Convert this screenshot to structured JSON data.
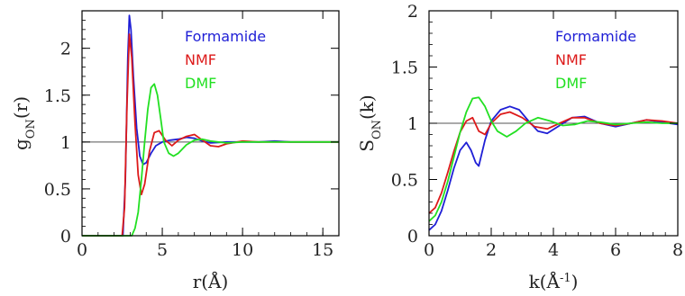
{
  "colors": {
    "Formamide": "#1f1fd6",
    "NMF": "#dd1a1a",
    "DMF": "#22e022",
    "axis": "#000000",
    "reference": "#555555"
  },
  "chart_data": [
    {
      "type": "line",
      "xlabel": "r(Å)",
      "ylabel_main": "g",
      "ylabel_sub": "ON",
      "ylabel_arg": "(r)",
      "xlim": [
        0,
        16
      ],
      "ylim": [
        0,
        2.4
      ],
      "xticks": [
        0,
        5,
        10,
        15
      ],
      "xtick_labels": [
        "0",
        "5",
        "10",
        "15"
      ],
      "yticks": [
        0,
        0.5,
        1,
        1.5,
        2
      ],
      "ytick_labels": [
        "0",
        "0.5",
        "1",
        "1.5",
        "2"
      ],
      "reference_line": 1,
      "legend_position": "top-right",
      "series": [
        {
          "name": "Formamide",
          "x": [
            0,
            2.55,
            2.7,
            2.85,
            2.95,
            3.05,
            3.2,
            3.4,
            3.6,
            3.8,
            4.0,
            4.3,
            4.6,
            5.0,
            5.5,
            6.0,
            6.5,
            7.0,
            7.5,
            8.0,
            9.0,
            10.0,
            11.0,
            12.0,
            13.0,
            14.0,
            15.0,
            16.0
          ],
          "y": [
            0,
            0,
            0.6,
            1.9,
            2.35,
            2.2,
            1.7,
            1.15,
            0.85,
            0.76,
            0.78,
            0.88,
            0.96,
            1.0,
            1.02,
            1.03,
            1.05,
            1.04,
            1.01,
            0.99,
            1.0,
            1.0,
            1.0,
            1.01,
            1.0,
            1.0,
            1.0,
            1.0
          ]
        },
        {
          "name": "NMF",
          "x": [
            0,
            2.5,
            2.65,
            2.8,
            2.95,
            3.1,
            3.3,
            3.5,
            3.7,
            3.9,
            4.2,
            4.5,
            4.8,
            5.2,
            5.6,
            6.0,
            6.5,
            7.0,
            7.5,
            8.0,
            8.5,
            9.0,
            10.0,
            11.0,
            12.0,
            13.0,
            14.0,
            15.0,
            16.0
          ],
          "y": [
            0,
            0,
            0.3,
            1.4,
            2.15,
            1.9,
            1.2,
            0.65,
            0.44,
            0.55,
            0.9,
            1.1,
            1.12,
            1.02,
            0.96,
            1.02,
            1.06,
            1.08,
            1.02,
            0.96,
            0.95,
            0.98,
            1.01,
            1.0,
            1.0,
            1.0,
            1.0,
            1.0,
            1.0
          ]
        },
        {
          "name": "DMF",
          "x": [
            0,
            3.1,
            3.3,
            3.5,
            3.7,
            3.9,
            4.1,
            4.3,
            4.5,
            4.7,
            4.9,
            5.1,
            5.4,
            5.7,
            6.0,
            6.5,
            7.0,
            7.5,
            8.0,
            9.0,
            10.0,
            11.0,
            12.0,
            13.0,
            14.0,
            15.0,
            16.0
          ],
          "y": [
            0,
            0,
            0.08,
            0.25,
            0.6,
            1.0,
            1.35,
            1.58,
            1.62,
            1.5,
            1.25,
            1.0,
            0.88,
            0.85,
            0.88,
            0.97,
            1.02,
            1.03,
            1.01,
            0.99,
            1.0,
            1.0,
            1.0,
            1.0,
            1.0,
            1.0,
            1.0
          ]
        }
      ]
    },
    {
      "type": "line",
      "xlabel_main": "k(Å",
      "xlabel_sup": "-1",
      "xlabel_end": ")",
      "ylabel_main": "S",
      "ylabel_sub": "ON",
      "ylabel_arg": "(k)",
      "xlim": [
        0,
        8
      ],
      "ylim": [
        0,
        2
      ],
      "xticks": [
        0,
        2,
        4,
        6,
        8
      ],
      "xtick_labels": [
        "0",
        "2",
        "4",
        "6",
        "8"
      ],
      "yticks": [
        0,
        0.5,
        1,
        1.5,
        2
      ],
      "ytick_labels": [
        "0",
        "0.5",
        "1",
        "1.5",
        "2"
      ],
      "reference_line": 1,
      "legend_position": "top-right",
      "series": [
        {
          "name": "Formamide",
          "x": [
            0,
            0.2,
            0.4,
            0.6,
            0.8,
            1.0,
            1.2,
            1.35,
            1.5,
            1.6,
            1.8,
            2.0,
            2.3,
            2.6,
            2.9,
            3.2,
            3.5,
            3.8,
            4.2,
            4.6,
            5.0,
            5.5,
            6.0,
            6.5,
            7.0,
            7.5,
            8.0
          ],
          "y": [
            0.05,
            0.1,
            0.22,
            0.4,
            0.6,
            0.76,
            0.83,
            0.76,
            0.65,
            0.62,
            0.85,
            1.02,
            1.12,
            1.15,
            1.12,
            1.02,
            0.93,
            0.91,
            0.98,
            1.05,
            1.06,
            1.0,
            0.97,
            1.0,
            1.03,
            1.01,
            0.99
          ]
        },
        {
          "name": "NMF",
          "x": [
            0,
            0.2,
            0.4,
            0.6,
            0.8,
            1.0,
            1.2,
            1.4,
            1.6,
            1.8,
            2.0,
            2.3,
            2.6,
            3.0,
            3.4,
            3.8,
            4.2,
            4.6,
            5.0,
            5.5,
            6.0,
            6.5,
            7.0,
            7.5,
            8.0
          ],
          "y": [
            0.2,
            0.25,
            0.38,
            0.56,
            0.75,
            0.92,
            1.02,
            1.05,
            0.93,
            0.9,
            1.0,
            1.08,
            1.1,
            1.05,
            0.97,
            0.95,
            1.0,
            1.05,
            1.05,
            1.0,
            0.98,
            1.0,
            1.03,
            1.02,
            1.0
          ]
        },
        {
          "name": "DMF",
          "x": [
            0,
            0.2,
            0.4,
            0.6,
            0.8,
            1.0,
            1.2,
            1.4,
            1.6,
            1.8,
            2.0,
            2.2,
            2.5,
            2.8,
            3.1,
            3.5,
            3.9,
            4.3,
            4.7,
            5.1,
            5.5,
            6.0,
            6.5,
            7.0,
            7.5,
            8.0
          ],
          "y": [
            0.13,
            0.18,
            0.3,
            0.48,
            0.7,
            0.92,
            1.1,
            1.22,
            1.23,
            1.15,
            1.02,
            0.93,
            0.88,
            0.93,
            1.0,
            1.05,
            1.02,
            0.98,
            0.99,
            1.02,
            1.01,
            0.99,
            1.0,
            1.01,
            1.0,
            1.0
          ]
        }
      ]
    }
  ]
}
